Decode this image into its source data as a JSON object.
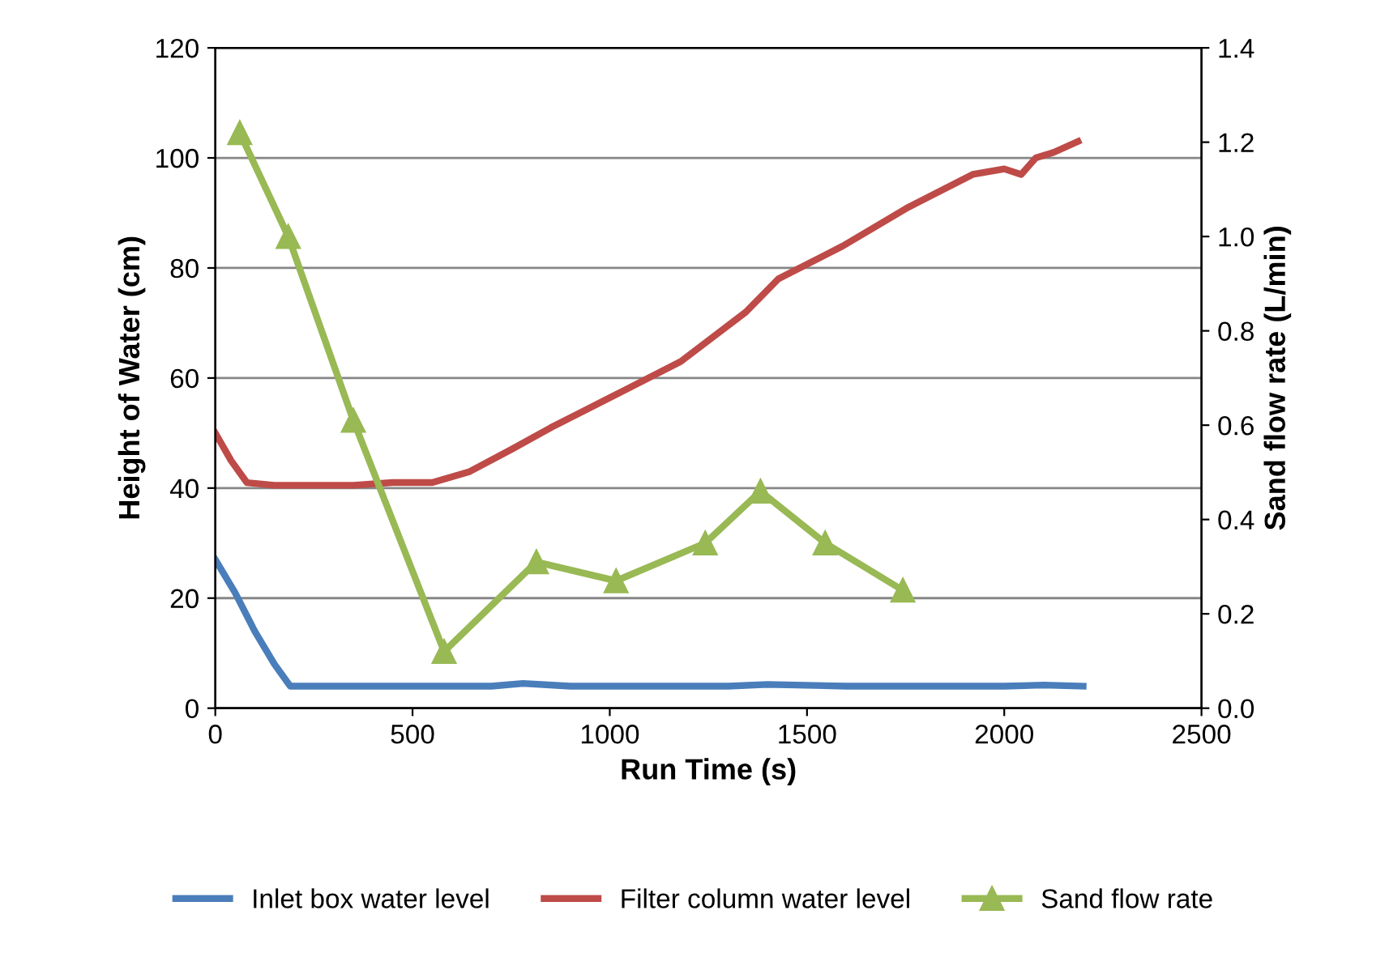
{
  "chart_data": {
    "type": "line",
    "xlabel": "Run Time (s)",
    "ylabel": "Height of Water (cm)",
    "y2label": "Sand flow rate (L/min)",
    "xlim": [
      0,
      2500
    ],
    "xticks": [
      0,
      500,
      1000,
      1500,
      2000,
      2500
    ],
    "ylim": [
      0,
      120
    ],
    "yticks": [
      0,
      20,
      40,
      60,
      80,
      100,
      120
    ],
    "y2lim": [
      0,
      1.4
    ],
    "y2ticks": [
      {
        "value": 0,
        "label": "0.0"
      },
      {
        "value": 0.2,
        "label": "0.2"
      },
      {
        "value": 0.4,
        "label": "0.4"
      },
      {
        "value": 0.6,
        "label": "0.6"
      },
      {
        "value": 0.8,
        "label": "0.8"
      },
      {
        "value": 1.0,
        "label": "1.0"
      },
      {
        "value": 1.2,
        "label": "1.2"
      },
      {
        "value": 1.4,
        "label": "1.4"
      }
    ],
    "grid": "y",
    "legend": "bottom",
    "series": [
      {
        "name": "Inlet box water level",
        "color": "#4a7ebb",
        "marker": "none",
        "x": [
          0,
          50,
          100,
          150,
          190,
          300,
          500,
          700,
          780,
          900,
          1100,
          1300,
          1400,
          1600,
          1800,
          2000,
          2100,
          2200
        ],
        "values": [
          27,
          21,
          14,
          8,
          4,
          4,
          4,
          4,
          4.5,
          4,
          4,
          4,
          4.3,
          4,
          4,
          4,
          4.2,
          4
        ]
      },
      {
        "name": "Filter column water level",
        "color": "#be4b48",
        "marker": "none",
        "x": [
          0,
          40,
          80,
          150,
          250,
          350,
          450,
          550,
          645,
          750,
          851,
          1016,
          1180,
          1345,
          1427,
          1591,
          1756,
          1920,
          2000,
          2043,
          2080,
          2125,
          2187
        ],
        "values": [
          50,
          45,
          41,
          40.5,
          40.5,
          40.5,
          41,
          41,
          43,
          47,
          51,
          57,
          63,
          72,
          78,
          84,
          91,
          97,
          98,
          97,
          100,
          101,
          103
        ]
      },
      {
        "name": "Sand flow rate",
        "color": "#98b954",
        "marker": "triangle",
        "axis": "y2",
        "x": [
          62,
          185,
          350,
          580,
          814,
          1016,
          1242,
          1382,
          1546,
          1743
        ],
        "values": [
          1.22,
          1.0,
          0.61,
          0.12,
          0.31,
          0.27,
          0.35,
          0.46,
          0.35,
          0.25
        ]
      }
    ]
  }
}
